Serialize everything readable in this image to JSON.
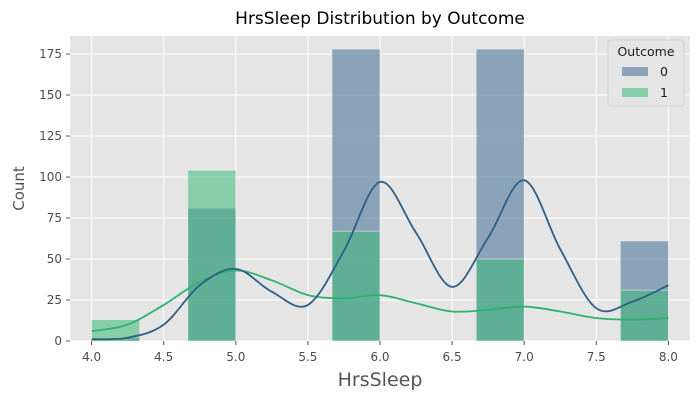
{
  "chart_data": {
    "type": "bar",
    "title": "HrsSleep Distribution by Outcome",
    "xlabel": "HrsSleep",
    "ylabel": "Count",
    "xlim": [
      3.85,
      8.15
    ],
    "ylim": [
      0,
      186
    ],
    "x_ticks": [
      "4.0",
      "4.5",
      "5.0",
      "5.5",
      "6.0",
      "6.5",
      "7.0",
      "7.5",
      "8.0"
    ],
    "y_ticks": [
      "0",
      "25",
      "50",
      "75",
      "100",
      "125",
      "150",
      "175"
    ],
    "grid": true,
    "bin_edges": [
      4.0,
      4.333,
      4.667,
      5.0,
      5.333,
      5.667,
      6.0,
      6.333,
      6.667,
      7.0,
      7.333,
      7.667,
      8.0
    ],
    "bins": [
      {
        "x0": 4.0,
        "x1": 4.333
      },
      {
        "x0": 4.667,
        "x1": 5.0
      },
      {
        "x0": 5.667,
        "x1": 6.0
      },
      {
        "x0": 6.667,
        "x1": 7.0
      },
      {
        "x0": 7.667,
        "x1": 8.0
      }
    ],
    "legend": {
      "title": "Outcome",
      "placement": "top-right"
    },
    "series": [
      {
        "name": "0",
        "color": "#5b7fa0",
        "values": [
          2,
          81,
          178,
          178,
          61
        ],
        "kde": {
          "x": [
            4.0,
            4.25,
            4.5,
            4.75,
            5.0,
            5.25,
            5.5,
            5.75,
            6.0,
            6.25,
            6.5,
            6.75,
            7.0,
            7.25,
            7.5,
            7.75,
            8.0
          ],
          "y": [
            1,
            2,
            10,
            34,
            44,
            30,
            22,
            55,
            97,
            66,
            33,
            63,
            98,
            56,
            20,
            24,
            34
          ]
        }
      },
      {
        "name": "1",
        "color": "#3dba7a",
        "values": [
          13,
          104,
          67,
          50,
          31
        ],
        "kde": {
          "x": [
            4.0,
            4.25,
            4.5,
            4.75,
            5.0,
            5.25,
            5.5,
            5.75,
            6.0,
            6.25,
            6.5,
            6.75,
            7.0,
            7.25,
            7.5,
            7.75,
            8.0
          ],
          "y": [
            6,
            10,
            22,
            36,
            43,
            37,
            28,
            26,
            28,
            23,
            18,
            19,
            21,
            18,
            14,
            13,
            14
          ]
        }
      }
    ],
    "kde_colors": {
      "0": "#2e5f87",
      "1": "#2fb171"
    }
  }
}
